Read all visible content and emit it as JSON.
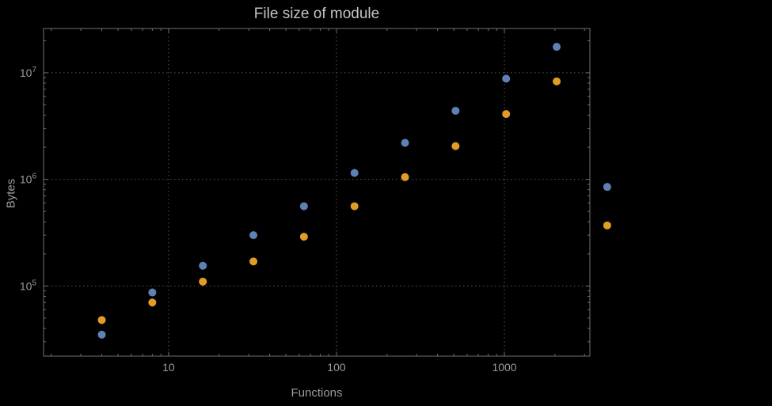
{
  "chart_data": {
    "type": "scatter",
    "title": "File size of module",
    "xlabel": "Functions",
    "ylabel": "Bytes",
    "x_scale": "log",
    "y_scale": "log",
    "x": [
      4,
      8,
      16,
      32,
      64,
      128,
      256,
      512,
      1024,
      2048,
      4096
    ],
    "series": [
      {
        "name": "blue-series",
        "color": "#5e81b5",
        "values": [
          35000,
          87000,
          155000,
          300000,
          560000,
          1150000,
          2200000,
          4400000,
          8800000,
          17500000,
          850000
        ]
      },
      {
        "name": "orange-series",
        "color": "#e19c24",
        "values": [
          48000,
          70000,
          110000,
          170000,
          290000,
          560000,
          1050000,
          2050000,
          4100000,
          8300000,
          370000
        ]
      }
    ],
    "x_ticks": [
      10,
      100,
      1000
    ],
    "x_tick_labels": [
      "10",
      "100",
      "1000"
    ],
    "y_ticks": [
      100000,
      1000000,
      10000000
    ],
    "y_tick_labels": [
      "10^5",
      "10^6",
      "10^7"
    ],
    "x_range": [
      1.8,
      3230
    ],
    "y_range": [
      22000,
      26000000
    ],
    "grid": "dotted",
    "legend": "none",
    "note": "last x (4096) points render outside right frame edge as in source image",
    "colors": {
      "background": "#000000",
      "frame": "#6f6f6f",
      "grid": "#565656",
      "tick_label": "#9b9b9b",
      "title": "#c4c4c4",
      "axis_label": "#9b9b9b"
    }
  }
}
